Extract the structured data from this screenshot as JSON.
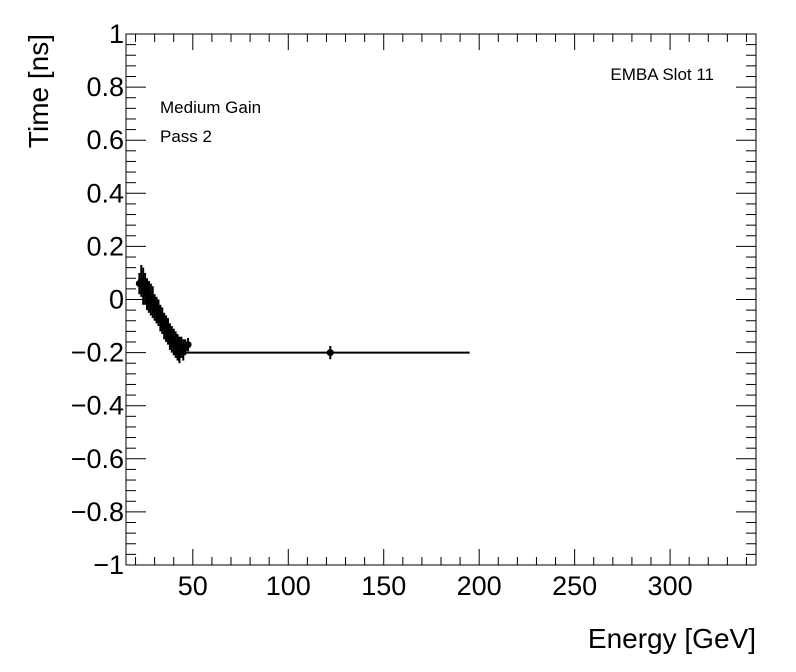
{
  "chart_data": {
    "type": "scatter",
    "xlabel": "Energy [GeV]",
    "ylabel": "Time [ns]",
    "xlim": [
      15,
      345
    ],
    "ylim": [
      -1,
      1
    ],
    "xticks": [
      50,
      100,
      150,
      200,
      250,
      300
    ],
    "yticks": [
      -1,
      -0.8,
      -0.6,
      -0.4,
      -0.2,
      0,
      0.2,
      0.4,
      0.6,
      0.8,
      1
    ],
    "xtick_labels": [
      "50",
      "100",
      "150",
      "200",
      "250",
      "300"
    ],
    "ytick_labels": [
      "−1",
      "−0.8",
      "−0.6",
      "−0.4",
      "−0.2",
      "0",
      "0.2",
      "0.4",
      "0.6",
      "0.8",
      "1"
    ],
    "annotations": {
      "slot": "EMBA Slot 11",
      "gain": "Medium Gain",
      "pass": "Pass 2"
    },
    "grid": false,
    "points": [
      {
        "x": 22.0,
        "y": 0.06,
        "yerr": 0.04
      },
      {
        "x": 23.0,
        "y": 0.07,
        "yerr": 0.06
      },
      {
        "x": 24.0,
        "y": 0.05,
        "yerr": 0.07
      },
      {
        "x": 25.0,
        "y": 0.04,
        "yerr": 0.06
      },
      {
        "x": 26.0,
        "y": 0.02,
        "yerr": 0.06
      },
      {
        "x": 27.0,
        "y": 0.01,
        "yerr": 0.06
      },
      {
        "x": 28.0,
        "y": 0.0,
        "yerr": 0.06
      },
      {
        "x": 29.0,
        "y": -0.01,
        "yerr": 0.06
      },
      {
        "x": 30.0,
        "y": -0.03,
        "yerr": 0.05
      },
      {
        "x": 31.0,
        "y": -0.04,
        "yerr": 0.05
      },
      {
        "x": 32.0,
        "y": -0.05,
        "yerr": 0.05
      },
      {
        "x": 33.0,
        "y": -0.07,
        "yerr": 0.05
      },
      {
        "x": 34.0,
        "y": -0.08,
        "yerr": 0.05
      },
      {
        "x": 35.0,
        "y": -0.1,
        "yerr": 0.05
      },
      {
        "x": 36.0,
        "y": -0.11,
        "yerr": 0.05
      },
      {
        "x": 37.0,
        "y": -0.12,
        "yerr": 0.05
      },
      {
        "x": 38.0,
        "y": -0.14,
        "yerr": 0.05
      },
      {
        "x": 39.0,
        "y": -0.15,
        "yerr": 0.05
      },
      {
        "x": 40.0,
        "y": -0.16,
        "yerr": 0.05
      },
      {
        "x": 41.0,
        "y": -0.17,
        "yerr": 0.05
      },
      {
        "x": 42.0,
        "y": -0.18,
        "yerr": 0.05
      },
      {
        "x": 43.0,
        "y": -0.19,
        "yerr": 0.05
      },
      {
        "x": 44.0,
        "y": -0.18,
        "yerr": 0.04
      },
      {
        "x": 45.0,
        "y": -0.19,
        "yerr": 0.04
      },
      {
        "x": 46.0,
        "y": -0.18,
        "yerr": 0.03
      },
      {
        "x": 47.5,
        "y": -0.17,
        "yerr": 0.025
      },
      {
        "x": 122.0,
        "y": -0.2,
        "yerr": 0.025
      }
    ],
    "horizontal_line": {
      "y": -0.2,
      "x_from": 40,
      "x_to": 195
    }
  }
}
